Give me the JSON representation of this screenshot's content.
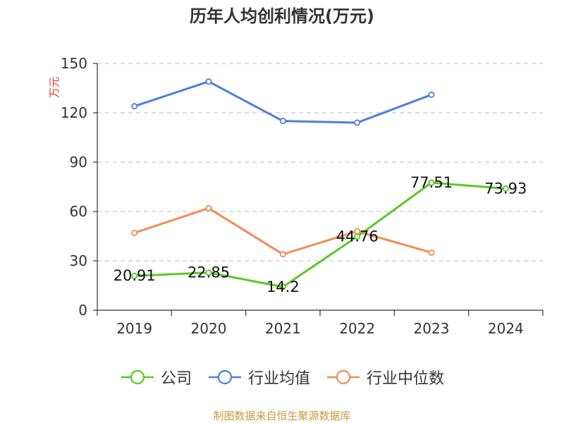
{
  "chart_data": {
    "type": "line",
    "title": "历年人均创利情况(万元)",
    "ylabel": "万元",
    "xlabel": "",
    "categories": [
      "2019",
      "2020",
      "2021",
      "2022",
      "2023",
      "2024"
    ],
    "ylim": [
      0,
      150
    ],
    "yticks": [
      0,
      30,
      60,
      90,
      120,
      150
    ],
    "grid": "horizontal-dashed",
    "legend_position": "bottom",
    "series": [
      {
        "name": "公司",
        "color": "#5cc725",
        "values": [
          20.91,
          22.85,
          14.2,
          44.76,
          77.51,
          73.93
        ],
        "labels": [
          "20.91",
          "22.85",
          "14.2",
          "44.76",
          "77.51",
          "73.93"
        ]
      },
      {
        "name": "行业均值",
        "color": "#4e7fd8",
        "values": [
          124,
          139,
          115,
          114,
          131,
          null
        ]
      },
      {
        "name": "行业中位数",
        "color": "#f28b55",
        "values": [
          47,
          62,
          34,
          48,
          35,
          null
        ]
      }
    ]
  },
  "source": "制图数据来自恒生聚源数据库",
  "colors": {
    "axis": "#333333",
    "grid": "#cccccc",
    "ylabel": "#e0312f",
    "source": "#c79a3c"
  }
}
